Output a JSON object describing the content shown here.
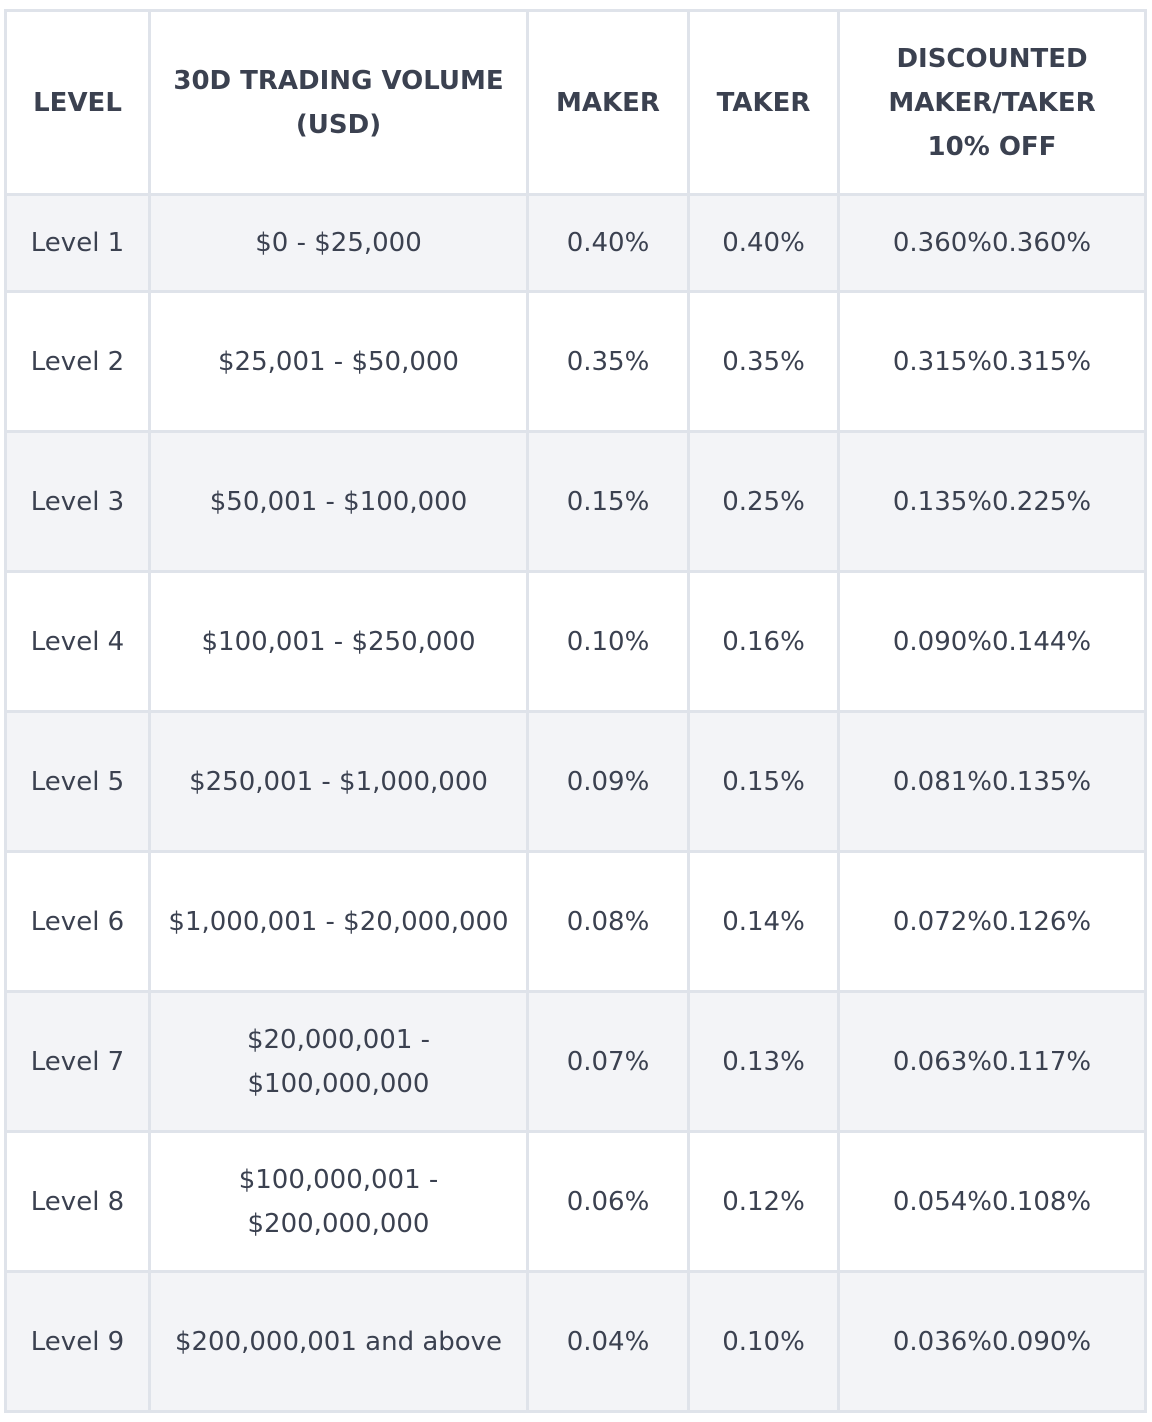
{
  "table": {
    "headers": [
      "LEVEL",
      "30D TRADING VOLUME (USD)",
      "MAKER",
      "TAKER",
      "DISCOUNTED MAKER/TAKER 10% OFF"
    ],
    "rows": [
      [
        "Level 1",
        "$0 - $25,000",
        "0.40%",
        "0.40%",
        "0.360%0.360%"
      ],
      [
        "Level 2",
        "$25,001 - $50,000",
        "0.35%",
        "0.35%",
        "0.315%0.315%"
      ],
      [
        "Level 3",
        "$50,001 - $100,000",
        "0.15%",
        "0.25%",
        "0.135%0.225%"
      ],
      [
        "Level 4",
        "$100,001 - $250,000",
        "0.10%",
        "0.16%",
        "0.090%0.144%"
      ],
      [
        "Level 5",
        "$250,001 - $1,000,000",
        "0.09%",
        "0.15%",
        "0.081%0.135%"
      ],
      [
        "Level 6",
        "$1,000,001 - $20,000,000",
        "0.08%",
        "0.14%",
        "0.072%0.126%"
      ],
      [
        "Level 7",
        "$20,000,001 - $100,000,000",
        "0.07%",
        "0.13%",
        "0.063%0.117%"
      ],
      [
        "Level 8",
        "$100,000,001 - $200,000,000",
        "0.06%",
        "0.12%",
        "0.054%0.108%"
      ],
      [
        "Level 9",
        "$200,000,001 and above",
        "0.04%",
        "0.10%",
        "0.036%0.090%"
      ]
    ]
  },
  "colors": {
    "border": "#dfe3ea",
    "row_alt": "#f3f4f7",
    "text": "#3b4150"
  }
}
